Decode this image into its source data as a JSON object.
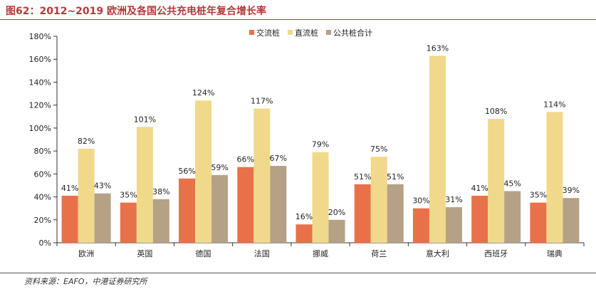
{
  "figure": {
    "title": "图62：2012~2019 欧洲及各国公共充电桩年复合增长率",
    "source": "资料来源：EAFO，中港证券研究所"
  },
  "chart_data": {
    "type": "bar",
    "categories": [
      "欧洲",
      "英国",
      "德国",
      "法国",
      "挪威",
      "荷兰",
      "意大利",
      "西班牙",
      "瑞典"
    ],
    "series": [
      {
        "name": "交流桩",
        "color": "#e8714a",
        "values": [
          41,
          35,
          56,
          66,
          16,
          51,
          30,
          41,
          35
        ],
        "labels": [
          "41%",
          "35%",
          "56%",
          "66%",
          "16%",
          "51%",
          "30%",
          "41%",
          "35%"
        ]
      },
      {
        "name": "直流桩",
        "color": "#f0d98a",
        "values": [
          82,
          101,
          124,
          117,
          79,
          75,
          163,
          108,
          114
        ],
        "labels": [
          "82%",
          "101%",
          "124%",
          "117%",
          "79%",
          "75%",
          "163%",
          "108%",
          "114%"
        ]
      },
      {
        "name": "公共桩合计",
        "color": "#b5a185",
        "values": [
          43,
          38,
          59,
          67,
          20,
          51,
          31,
          45,
          39
        ],
        "labels": [
          "43%",
          "38%",
          "59%",
          "67%",
          "20%",
          "51%",
          "31%",
          "45%",
          "39%"
        ]
      }
    ],
    "ylim": [
      0,
      180
    ],
    "yticks": [
      0,
      20,
      40,
      60,
      80,
      100,
      120,
      140,
      160,
      180
    ],
    "ytick_labels": [
      "0%",
      "20%",
      "40%",
      "60%",
      "80%",
      "100%",
      "120%",
      "140%",
      "160%",
      "180%"
    ],
    "xlabel": "",
    "ylabel": "",
    "grid": false,
    "legend_position": "top-right"
  }
}
